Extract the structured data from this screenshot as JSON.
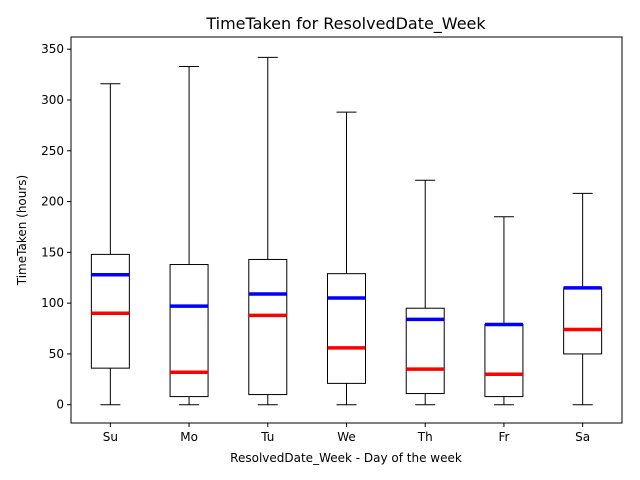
{
  "chart_data": {
    "type": "boxplot",
    "title": "TimeTaken for ResolvedDate_Week",
    "xlabel": "ResolvedDate_Week - Day of the week",
    "ylabel": "TimeTaken (hours)",
    "ylim": [
      -18,
      362
    ],
    "yticks": [
      0,
      50,
      100,
      150,
      200,
      250,
      300,
      350
    ],
    "grid": false,
    "colors": {
      "box": "#000000",
      "median": "#ff0000",
      "mean": "#0000ff"
    },
    "categories": [
      "Su",
      "Mo",
      "Tu",
      "We",
      "Th",
      "Fr",
      "Sa"
    ],
    "boxes": [
      {
        "whisker_low": 0,
        "q1": 36,
        "median": 90,
        "mean": 128,
        "q3": 148,
        "whisker_high": 316
      },
      {
        "whisker_low": 0,
        "q1": 8,
        "median": 32,
        "mean": 97,
        "q3": 138,
        "whisker_high": 333
      },
      {
        "whisker_low": 0,
        "q1": 10,
        "median": 88,
        "mean": 109,
        "q3": 143,
        "whisker_high": 342
      },
      {
        "whisker_low": 0,
        "q1": 21,
        "median": 56,
        "mean": 105,
        "q3": 129,
        "whisker_high": 288
      },
      {
        "whisker_low": 0,
        "q1": 11,
        "median": 35,
        "mean": 84,
        "q3": 95,
        "whisker_high": 221
      },
      {
        "whisker_low": 0,
        "q1": 8,
        "median": 30,
        "mean": 79,
        "q3": 79,
        "whisker_high": 185
      },
      {
        "whisker_low": 0,
        "q1": 50,
        "median": 74,
        "mean": 115,
        "q3": 115,
        "whisker_high": 208
      }
    ]
  }
}
